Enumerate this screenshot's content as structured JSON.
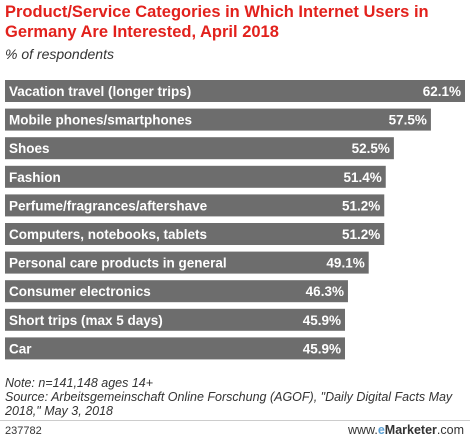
{
  "title": "Product/Service Categories in Which Internet Users in Germany Are Interested, April 2018",
  "subtitle": "% of respondents",
  "chart_data": {
    "type": "bar",
    "orientation": "horizontal",
    "categories": [
      "Vacation travel (longer trips)",
      "Mobile phones/smartphones",
      "Shoes",
      "Fashion",
      "Perfume/fragrances/aftershave",
      "Computers, notebooks, tablets",
      "Personal care products in general",
      "Consumer electronics",
      "Short trips (max 5 days)",
      "Car"
    ],
    "values": [
      62.1,
      57.5,
      52.5,
      51.4,
      51.2,
      51.2,
      49.1,
      46.3,
      45.9,
      45.9
    ],
    "value_labels": [
      "62.1%",
      "57.5%",
      "52.5%",
      "51.4%",
      "51.2%",
      "51.2%",
      "49.1%",
      "46.3%",
      "45.9%",
      "45.9%"
    ],
    "bar_color": "#6d6d6d",
    "label_color": "#ffffff",
    "xlim": [
      0,
      62.1
    ],
    "grid": false,
    "legend": "none"
  },
  "note": "Note: n=141,148 ages 14+",
  "source": "Source: Arbeitsgemeinschaft Online Forschung (AGOF), \"Daily Digital Facts May 2018,\" May 3, 2018",
  "footer": {
    "chart_id": "237782",
    "brand_prefix": "www.",
    "brand_accent": "e",
    "brand_rest": "Marketer",
    "brand_suffix": ".com"
  }
}
